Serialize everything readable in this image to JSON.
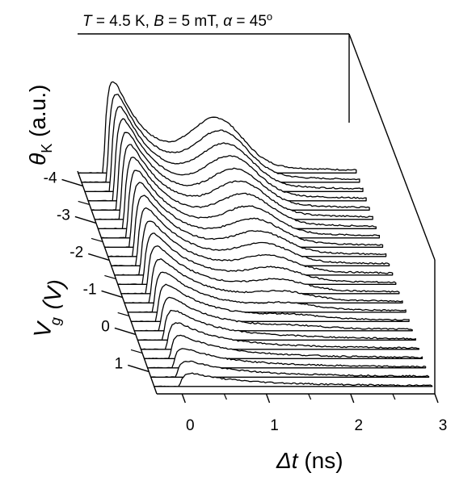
{
  "chart_data": {
    "type": "line",
    "subtype": "3d-waterfall",
    "title": {
      "T_symbol": "T",
      "T_value": " = 4.5 K, ",
      "B_symbol": "B",
      "B_value": " = 5 mT, ",
      "alpha_symbol": "α",
      "alpha_value": " = 45",
      "alpha_unit": "o"
    },
    "x_axis": {
      "label_symbol": "Δt",
      "label_unit": " (ns)",
      "range": [
        -0.3,
        3.0
      ],
      "ticks": [
        "0",
        "1",
        "2",
        "3"
      ],
      "tick_values": [
        0,
        1,
        2,
        3
      ]
    },
    "depth_axis": {
      "label_symbol": "V",
      "label_sub": "g",
      "label_unit": " (V)",
      "range": [
        1.6,
        -4.4
      ],
      "ticks": [
        "-4",
        "-3",
        "-2",
        "-1",
        "0",
        "1"
      ],
      "tick_values": [
        -4,
        -3,
        -2,
        -1,
        0,
        1
      ]
    },
    "z_axis": {
      "label_symbol": "θ",
      "label_sub": "K",
      "label_unit": " (a.u.)"
    },
    "series_count": 24,
    "vg_start": 1.4,
    "vg_step": -0.25,
    "grid": false,
    "legend": "none"
  }
}
